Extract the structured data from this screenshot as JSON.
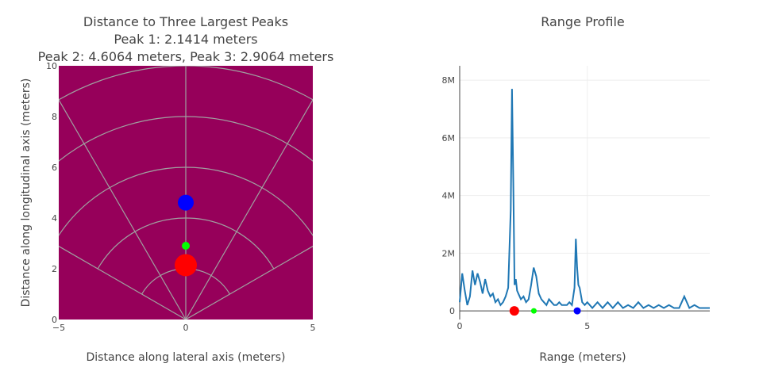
{
  "chart_data": [
    {
      "type": "scatter",
      "title_lines": [
        "Distance to Three Largest Peaks",
        "Peak 1: 2.1414 meters",
        "Peak 2: 4.6064 meters, Peak 3: 2.9064 meters"
      ],
      "xlabel": "Distance along lateral axis (meters)",
      "ylabel": "Distance along longitudinal axis (meters)",
      "xlim": [
        -5,
        5
      ],
      "ylim": [
        0,
        10
      ],
      "xticks": [
        -5,
        0,
        5
      ],
      "yticks": [
        0,
        2,
        4,
        6,
        8,
        10
      ],
      "xtick_labels": [
        "−5",
        "0",
        "5"
      ],
      "ytick_labels": [
        "0",
        "2",
        "4",
        "6",
        "8",
        "10"
      ],
      "background_color": "#96005a",
      "grid_color": "#a0a0a0",
      "range_rings": [
        2,
        4,
        6,
        8,
        10
      ],
      "radial_angles_deg": [
        -60,
        -30,
        0,
        30,
        60
      ],
      "peaks": [
        {
          "x": 0,
          "y": 2.1414,
          "color": "#ff0000",
          "size": "large"
        },
        {
          "x": 0,
          "y": 4.6064,
          "color": "#0000ff",
          "size": "medium"
        },
        {
          "x": 0,
          "y": 2.9064,
          "color": "#00ff00",
          "size": "small"
        }
      ]
    },
    {
      "type": "line",
      "title": "Range Profile",
      "xlabel": "Range (meters)",
      "ylabel": "",
      "xlim": [
        0,
        9.8
      ],
      "ylim": [
        -0.3,
        8.5
      ],
      "y_unit_suffix": "M",
      "xticks": [
        0,
        5
      ],
      "yticks": [
        0,
        2,
        4,
        6,
        8
      ],
      "ytick_labels": [
        "0",
        "2M",
        "4M",
        "6M",
        "8M"
      ],
      "line_color": "#1f77b4",
      "grid_color": "#eeeeee",
      "x": [
        0.0,
        0.1,
        0.2,
        0.3,
        0.4,
        0.5,
        0.6,
        0.7,
        0.8,
        0.9,
        1.0,
        1.1,
        1.2,
        1.3,
        1.4,
        1.5,
        1.6,
        1.7,
        1.8,
        1.9,
        2.0,
        2.05,
        2.1,
        2.15,
        2.2,
        2.25,
        2.3,
        2.4,
        2.5,
        2.6,
        2.7,
        2.8,
        2.9,
        3.0,
        3.1,
        3.2,
        3.3,
        3.4,
        3.5,
        3.6,
        3.7,
        3.8,
        3.9,
        4.0,
        4.1,
        4.2,
        4.3,
        4.4,
        4.5,
        4.55,
        4.6,
        4.65,
        4.7,
        4.8,
        4.9,
        5.0,
        5.2,
        5.4,
        5.6,
        5.8,
        6.0,
        6.2,
        6.4,
        6.6,
        6.8,
        7.0,
        7.2,
        7.4,
        7.6,
        7.8,
        8.0,
        8.2,
        8.4,
        8.6,
        8.8,
        9.0,
        9.2,
        9.4,
        9.6,
        9.8
      ],
      "y": [
        0.3,
        1.3,
        0.7,
        0.2,
        0.5,
        1.4,
        0.9,
        1.3,
        1.0,
        0.6,
        1.1,
        0.7,
        0.5,
        0.6,
        0.3,
        0.4,
        0.2,
        0.3,
        0.5,
        0.8,
        3.5,
        7.7,
        4.5,
        0.9,
        1.1,
        0.7,
        0.6,
        0.4,
        0.5,
        0.3,
        0.4,
        0.9,
        1.5,
        1.2,
        0.6,
        0.4,
        0.3,
        0.2,
        0.4,
        0.3,
        0.2,
        0.2,
        0.3,
        0.2,
        0.2,
        0.2,
        0.3,
        0.2,
        0.8,
        2.5,
        1.5,
        0.9,
        0.8,
        0.3,
        0.2,
        0.3,
        0.1,
        0.3,
        0.1,
        0.3,
        0.1,
        0.3,
        0.1,
        0.2,
        0.1,
        0.3,
        0.1,
        0.2,
        0.1,
        0.2,
        0.1,
        0.2,
        0.1,
        0.1,
        0.5,
        0.1,
        0.2,
        0.1,
        0.1,
        0.1
      ],
      "peaks": [
        {
          "x": 2.1414,
          "y": 0,
          "color": "#ff0000",
          "size": "large"
        },
        {
          "x": 2.9064,
          "y": 0,
          "color": "#00ff00",
          "size": "small"
        },
        {
          "x": 4.6064,
          "y": 0,
          "color": "#0000ff",
          "size": "medium"
        }
      ]
    }
  ]
}
